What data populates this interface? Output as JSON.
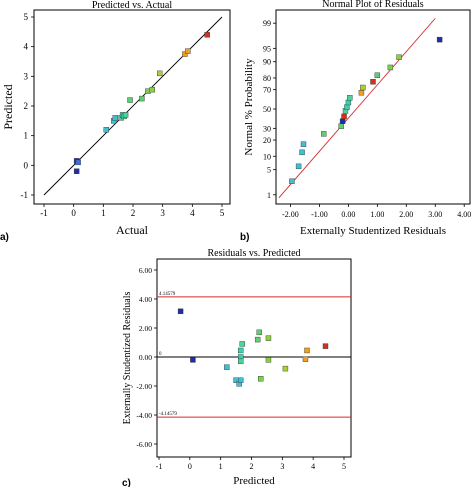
{
  "chart_data": [
    {
      "type": "scatter",
      "panel_label": "a)",
      "title": "Predicted vs. Actual",
      "xlabel": "Actual",
      "ylabel": "Predicted",
      "xlim": [
        -1,
        5
      ],
      "ylim": [
        -1,
        5
      ],
      "xticks": [
        "-1",
        "0",
        "1",
        "2",
        "3",
        "4",
        "5"
      ],
      "yticks": [
        "-1",
        "0",
        "1",
        "2",
        "3",
        "4",
        "5"
      ],
      "reference_line": "y = x",
      "grid": false,
      "points": [
        {
          "x": 0.1,
          "y": 0.15,
          "color": "#1f2ea8"
        },
        {
          "x": 0.12,
          "y": 0.12,
          "color": "#1f2ea8"
        },
        {
          "x": 0.15,
          "y": 0.1,
          "color": "#3d6fd6"
        },
        {
          "x": 0.1,
          "y": -0.2,
          "color": "#1f2ea8"
        },
        {
          "x": 1.1,
          "y": 1.2,
          "color": "#3fbfd0"
        },
        {
          "x": 1.35,
          "y": 1.5,
          "color": "#3fbfd0"
        },
        {
          "x": 1.4,
          "y": 1.6,
          "color": "#3fbfd0"
        },
        {
          "x": 1.6,
          "y": 1.6,
          "color": "#3fcfb0"
        },
        {
          "x": 1.65,
          "y": 1.7,
          "color": "#3fcfb0"
        },
        {
          "x": 1.7,
          "y": 1.65,
          "color": "#4ad49a"
        },
        {
          "x": 1.75,
          "y": 1.7,
          "color": "#4ad49a"
        },
        {
          "x": 1.9,
          "y": 2.2,
          "color": "#5cd070"
        },
        {
          "x": 2.3,
          "y": 2.25,
          "color": "#5cd070"
        },
        {
          "x": 2.5,
          "y": 2.5,
          "color": "#7cd050"
        },
        {
          "x": 2.65,
          "y": 2.55,
          "color": "#8ad040"
        },
        {
          "x": 2.9,
          "y": 3.1,
          "color": "#a8d030"
        },
        {
          "x": 3.75,
          "y": 3.75,
          "color": "#e8a020"
        },
        {
          "x": 3.85,
          "y": 3.85,
          "color": "#f0a020"
        },
        {
          "x": 4.5,
          "y": 4.4,
          "color": "#d43020"
        }
      ]
    },
    {
      "type": "scatter",
      "panel_label": "b)",
      "title": "Normal Plot of Residuals",
      "xlabel": "Externally Studentized Residuals",
      "ylabel": "Normal % Probability",
      "xlim": [
        -2.5,
        4.2
      ],
      "xticks": [
        "-2.00",
        "-1.00",
        "0.00",
        "1.00",
        "2.00",
        "3.00",
        "4.00"
      ],
      "yscale": "normal probability",
      "yticks": [
        "1",
        "5",
        "10",
        "20",
        "30",
        "50",
        "70",
        "80",
        "90",
        "95",
        "99"
      ],
      "reference_line": "normal fit",
      "grid": false,
      "points": [
        {
          "x": -1.95,
          "y": 2.5,
          "color": "#3fbfd0"
        },
        {
          "x": -1.72,
          "y": 6,
          "color": "#3fbfd0"
        },
        {
          "x": -1.6,
          "y": 12,
          "color": "#3fbfd0"
        },
        {
          "x": -1.55,
          "y": 17,
          "color": "#3fbfd0"
        },
        {
          "x": -0.85,
          "y": 25,
          "color": "#5cd070"
        },
        {
          "x": -0.25,
          "y": 32,
          "color": "#5cd070"
        },
        {
          "x": -0.2,
          "y": 37,
          "color": "#1f2ea8"
        },
        {
          "x": -0.15,
          "y": 42,
          "color": "#d43020"
        },
        {
          "x": -0.1,
          "y": 48,
          "color": "#4ad49a"
        },
        {
          "x": -0.05,
          "y": 52,
          "color": "#3fcfb0"
        },
        {
          "x": 0.0,
          "y": 57,
          "color": "#3fcfb0"
        },
        {
          "x": 0.05,
          "y": 62,
          "color": "#4ad49a"
        },
        {
          "x": 0.45,
          "y": 67,
          "color": "#f0a020"
        },
        {
          "x": 0.5,
          "y": 72,
          "color": "#a8d030"
        },
        {
          "x": 0.85,
          "y": 77,
          "color": "#d43020"
        },
        {
          "x": 1.0,
          "y": 82,
          "color": "#5cd070"
        },
        {
          "x": 1.45,
          "y": 87,
          "color": "#7cd050"
        },
        {
          "x": 1.75,
          "y": 92,
          "color": "#8ad040"
        },
        {
          "x": 3.15,
          "y": 97,
          "color": "#1f2ea8"
        }
      ]
    },
    {
      "type": "scatter",
      "panel_label": "c)",
      "title": "Residuals vs. Predicted",
      "xlabel": "Predicted",
      "ylabel": "Externally Studentized Residuals",
      "xlim": [
        -1,
        5
      ],
      "ylim": [
        -6,
        6
      ],
      "xticks": [
        "-1",
        "0",
        "1",
        "2",
        "3",
        "4",
        "5"
      ],
      "yticks": [
        "6.00",
        "4.00",
        "2.00",
        "0.00",
        "-2.00",
        "-4.00",
        "-6.00"
      ],
      "limit_lines": [
        {
          "value": 4.14579,
          "label": "4.14579",
          "color": "#d42a2a"
        },
        {
          "value": 0,
          "label": "0",
          "color": "#000000"
        },
        {
          "value": -4.14579,
          "label": "-4.14579",
          "color": "#d42a2a"
        }
      ],
      "grid": false,
      "points": [
        {
          "x": -0.3,
          "y": 3.15,
          "color": "#1f2ea8"
        },
        {
          "x": 0.1,
          "y": -0.2,
          "color": "#1f2ea8"
        },
        {
          "x": 1.2,
          "y": -0.7,
          "color": "#3fbfd0"
        },
        {
          "x": 1.5,
          "y": -1.6,
          "color": "#3fbfd0"
        },
        {
          "x": 1.6,
          "y": -1.85,
          "color": "#3fbfd0"
        },
        {
          "x": 1.65,
          "y": -1.6,
          "color": "#3fbfd0"
        },
        {
          "x": 1.65,
          "y": 0.0,
          "color": "#3fcfb0"
        },
        {
          "x": 1.65,
          "y": 0.45,
          "color": "#3fcfb0"
        },
        {
          "x": 1.7,
          "y": 0.9,
          "color": "#4ad49a"
        },
        {
          "x": 1.65,
          "y": -0.3,
          "color": "#4ad49a"
        },
        {
          "x": 2.2,
          "y": 1.2,
          "color": "#5cd070"
        },
        {
          "x": 2.25,
          "y": 1.7,
          "color": "#5cd070"
        },
        {
          "x": 2.3,
          "y": -1.5,
          "color": "#7cd050"
        },
        {
          "x": 2.55,
          "y": 1.3,
          "color": "#8ad040"
        },
        {
          "x": 2.55,
          "y": -0.2,
          "color": "#8ad040"
        },
        {
          "x": 3.1,
          "y": -0.8,
          "color": "#a8d030"
        },
        {
          "x": 3.75,
          "y": -0.15,
          "color": "#f0a020"
        },
        {
          "x": 3.8,
          "y": 0.45,
          "color": "#f0a020"
        },
        {
          "x": 4.4,
          "y": 0.75,
          "color": "#d43020"
        }
      ]
    }
  ]
}
